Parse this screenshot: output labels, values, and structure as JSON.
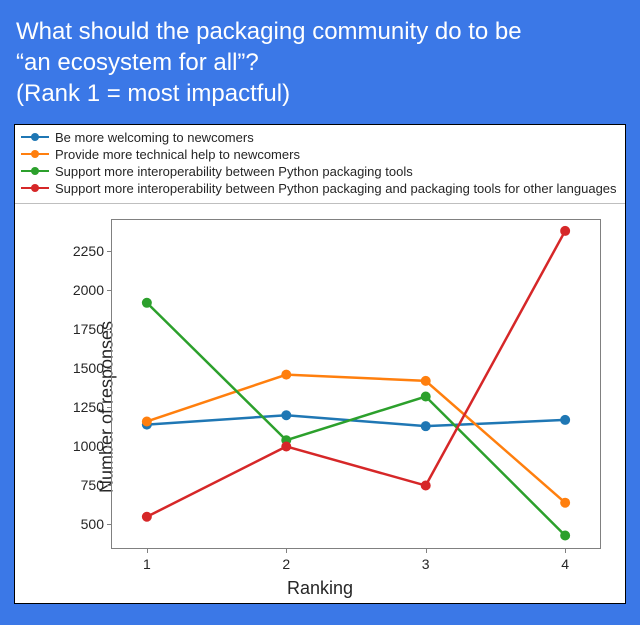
{
  "title": {
    "line1": "What should the packaging community do to be",
    "line2": "“an ecosystem for all”?",
    "line3": "(Rank 1 = most impactful)"
  },
  "colors": {
    "outer_bg": "#3b78e7",
    "card_bg": "#ffffff",
    "text": "#262626",
    "axis": "#808080"
  },
  "chart": {
    "type": "line",
    "xlabel": "Ranking",
    "ylabel": "Number of responses",
    "x_values": [
      1,
      2,
      3,
      4
    ],
    "x_domain": [
      0.75,
      4.25
    ],
    "ylim": [
      350,
      2450
    ],
    "yticks": [
      500,
      750,
      1000,
      1250,
      1500,
      1750,
      2000,
      2250
    ],
    "line_width": 2.5,
    "marker_radius": 5,
    "series": [
      {
        "label": "Be more welcoming to newcomers",
        "color": "#1f77b4",
        "values": [
          1140,
          1200,
          1130,
          1170
        ]
      },
      {
        "label": "Provide more technical help to newcomers",
        "color": "#ff7f0e",
        "values": [
          1160,
          1460,
          1420,
          640
        ]
      },
      {
        "label": "Support more interoperability between Python packaging tools",
        "color": "#2ca02c",
        "values": [
          1920,
          1040,
          1320,
          430
        ]
      },
      {
        "label": "Support more interoperability between Python packaging and packaging tools for other languages",
        "color": "#d62728",
        "values": [
          550,
          1000,
          750,
          2380
        ]
      }
    ],
    "label_fontsize": 18,
    "tick_fontsize": 14,
    "legend_fontsize": 13
  }
}
